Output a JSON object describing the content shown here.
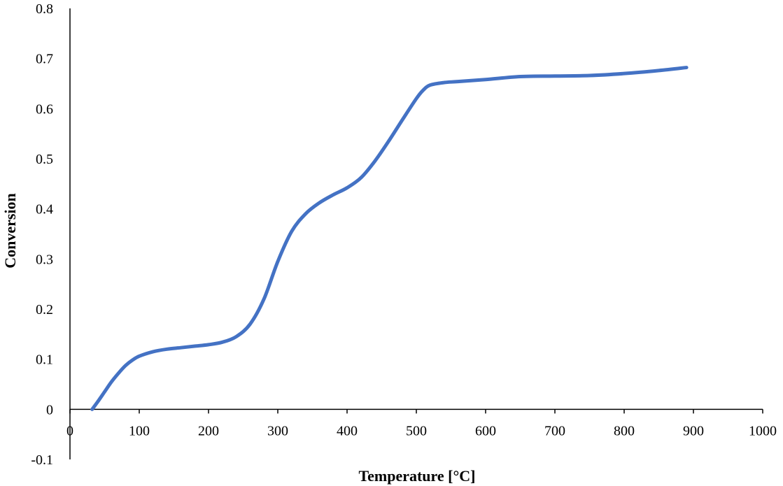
{
  "chart_data": {
    "type": "line",
    "title": "",
    "xlabel": "Temperature  [°C]",
    "ylabel": "Conversion",
    "xlim": [
      0,
      1000
    ],
    "ylim": [
      -0.1,
      0.8
    ],
    "xticks": [
      0,
      100,
      200,
      300,
      400,
      500,
      600,
      700,
      800,
      900,
      1000
    ],
    "xtick_labels": [
      "0",
      "100",
      "200",
      "300",
      "400",
      "500",
      "600",
      "700",
      "800",
      "900",
      "1000"
    ],
    "yticks": [
      -0.1,
      0,
      0.1,
      0.2,
      0.3,
      0.4,
      0.5,
      0.6,
      0.7,
      0.8
    ],
    "ytick_labels": [
      "-0.1",
      "0",
      "0.1",
      "0.2",
      "0.3",
      "0.4",
      "0.5",
      "0.6",
      "0.7",
      "0.8"
    ],
    "grid": false,
    "legend": "none",
    "series": [
      {
        "color": "#4472C4",
        "x": [
          32,
          40,
          50,
          60,
          70,
          80,
          90,
          100,
          120,
          140,
          160,
          180,
          200,
          220,
          240,
          260,
          280,
          300,
          320,
          340,
          360,
          380,
          400,
          420,
          440,
          460,
          480,
          500,
          510,
          520,
          540,
          560,
          600,
          650,
          700,
          750,
          800,
          850,
          890
        ],
        "y": [
          0.0,
          0.015,
          0.035,
          0.055,
          0.072,
          0.087,
          0.098,
          0.106,
          0.115,
          0.12,
          0.123,
          0.126,
          0.129,
          0.134,
          0.145,
          0.17,
          0.22,
          0.295,
          0.355,
          0.39,
          0.412,
          0.428,
          0.442,
          0.462,
          0.495,
          0.535,
          0.578,
          0.62,
          0.637,
          0.647,
          0.652,
          0.654,
          0.658,
          0.664,
          0.665,
          0.666,
          0.67,
          0.676,
          0.682
        ]
      }
    ]
  }
}
